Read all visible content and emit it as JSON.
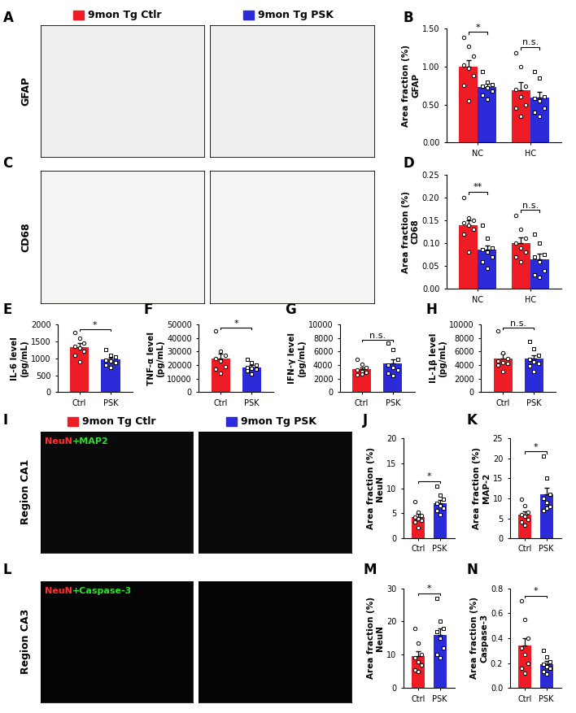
{
  "groups": [
    {
      "name": "9mon Tg Ctlr",
      "color": "#ee1c25"
    },
    {
      "name": "9mon Tg PSK",
      "color": "#2b2bd9"
    }
  ],
  "images": [
    {
      "panel": "A",
      "row_label": "GFAP",
      "headers": true,
      "background": "#f0efed"
    },
    {
      "panel": "C",
      "row_label": "CD68",
      "headers": false,
      "background": "#f4f4f2"
    },
    {
      "panel": "I",
      "row_label": "Region CA1",
      "headers": true,
      "background": "#0a0a0a",
      "stain": [
        {
          "text": "NeuN",
          "color": "#ff3030"
        },
        {
          "text": "+MAP2",
          "color": "#30e030"
        }
      ]
    },
    {
      "panel": "L",
      "row_label": "Region CA3",
      "headers": false,
      "background": "#050505",
      "stain": [
        {
          "text": "NeuN",
          "color": "#ff3030"
        },
        {
          "text": "+Caspase-3",
          "color": "#30e030"
        }
      ]
    }
  ],
  "chart_data": [
    {
      "panel": "B",
      "type": "bar",
      "ylabel": "Area fraction (%)\nGFAP",
      "categories": [
        "NC",
        "HC"
      ],
      "series": [
        {
          "color": "#ee1c25",
          "values": [
            1.0,
            0.69
          ],
          "errors": [
            0.08,
            0.1
          ],
          "points": [
            [
              1.38,
              1.27,
              1.14,
              1.02,
              0.98,
              0.88,
              0.75,
              0.55
            ],
            [
              1.18,
              1.0,
              0.74,
              0.7,
              0.6,
              0.5,
              0.45,
              0.35
            ]
          ]
        },
        {
          "color": "#2b2bd9",
          "values": [
            0.73,
            0.59
          ],
          "errors": [
            0.04,
            0.08
          ],
          "points": [
            [
              0.93,
              0.79,
              0.76,
              0.74,
              0.72,
              0.68,
              0.62,
              0.57
            ],
            [
              0.93,
              0.85,
              0.6,
              0.58,
              0.55,
              0.45,
              0.4,
              0.35
            ]
          ]
        }
      ],
      "significance": [
        "*",
        "n.s."
      ],
      "ylim": [
        0,
        1.5
      ],
      "yticks": [
        {
          "value": 0,
          "label": "0.00"
        },
        {
          "value": 0.5,
          "label": "0.50"
        },
        {
          "value": 1.0,
          "label": "1.00"
        },
        {
          "value": 1.5,
          "label": "1.50"
        }
      ]
    },
    {
      "panel": "D",
      "type": "bar",
      "ylabel": "Area fraction (%)\nCD68",
      "categories": [
        "NC",
        "HC"
      ],
      "series": [
        {
          "color": "#ee1c25",
          "values": [
            0.14,
            0.1
          ],
          "errors": [
            0.01,
            0.012
          ],
          "points": [
            [
              0.2,
              0.155,
              0.15,
              0.145,
              0.14,
              0.13,
              0.12,
              0.08
            ],
            [
              0.16,
              0.13,
              0.11,
              0.1,
              0.09,
              0.08,
              0.07,
              0.06
            ]
          ]
        },
        {
          "color": "#2b2bd9",
          "values": [
            0.085,
            0.065
          ],
          "errors": [
            0.01,
            0.012
          ],
          "points": [
            [
              0.14,
              0.11,
              0.09,
              0.085,
              0.08,
              0.07,
              0.06,
              0.045
            ],
            [
              0.12,
              0.1,
              0.075,
              0.07,
              0.06,
              0.04,
              0.03,
              0.025
            ]
          ]
        }
      ],
      "significance": [
        "**",
        "n.s."
      ],
      "ylim": [
        0,
        0.25
      ],
      "yticks": [
        {
          "value": 0,
          "label": "0.00"
        },
        {
          "value": 0.05,
          "label": "0.05"
        },
        {
          "value": 0.1,
          "label": "0.10"
        },
        {
          "value": 0.15,
          "label": "0.15"
        },
        {
          "value": 0.2,
          "label": "0.20"
        },
        {
          "value": 0.25,
          "label": "0.25"
        }
      ]
    },
    {
      "panel": "E",
      "type": "bar",
      "ylabel": "IL-6 level\n(pg/mL)",
      "categories": [
        "Ctrl",
        "PSK"
      ],
      "values": [
        1330,
        960
      ],
      "colors": [
        "#ee1c25",
        "#2b2bd9"
      ],
      "errors": [
        110,
        60
      ],
      "points": [
        [
          1750,
          1600,
          1450,
          1350,
          1300,
          1200,
          1100,
          900
        ],
        [
          1250,
          1100,
          1050,
          950,
          920,
          880,
          800,
          730
        ]
      ],
      "significance": "*",
      "ylim": [
        0,
        2000
      ],
      "yticks": [
        0,
        500,
        1000,
        1500,
        2000
      ]
    },
    {
      "panel": "F",
      "type": "bar",
      "ylabel": "TNF-α level\n(pg/mL)",
      "categories": [
        "Ctrl",
        "PSK"
      ],
      "values": [
        25000,
        18500
      ],
      "colors": [
        "#ee1c25",
        "#2b2bd9"
      ],
      "errors": [
        3200,
        1300
      ],
      "points": [
        [
          45000,
          30000,
          27000,
          25000,
          23000,
          19000,
          17000,
          14000
        ],
        [
          24000,
          22000,
          20000,
          18000,
          17500,
          17000,
          16000,
          13500
        ]
      ],
      "significance": "*",
      "ylim": [
        0,
        50000
      ],
      "yticks": [
        0,
        10000,
        20000,
        30000,
        40000,
        50000
      ]
    },
    {
      "panel": "G",
      "type": "bar",
      "ylabel": "IFN-γ level\n(pg/mL)",
      "categories": [
        "Ctrl",
        "PSK"
      ],
      "values": [
        3400,
        4300
      ],
      "colors": [
        "#ee1c25",
        "#2b2bd9"
      ],
      "errors": [
        300,
        600
      ],
      "points": [
        [
          4800,
          4100,
          3700,
          3300,
          3100,
          2900,
          2600,
          2700
        ],
        [
          7200,
          6300,
          4800,
          4000,
          3600,
          3300,
          2800,
          2400
        ]
      ],
      "significance": "n.s.",
      "ylim": [
        0,
        10000
      ],
      "yticks": [
        0,
        2000,
        4000,
        6000,
        8000,
        10000
      ]
    },
    {
      "panel": "H",
      "type": "bar",
      "ylabel": "IL-1β level\n(pg/mL)",
      "categories": [
        "Ctrl",
        "PSK"
      ],
      "values": [
        5000,
        5000
      ],
      "colors": [
        "#ee1c25",
        "#2b2bd9"
      ],
      "errors": [
        650,
        480
      ],
      "points": [
        [
          9000,
          5800,
          5000,
          4600,
          4400,
          4200,
          4000,
          3000
        ],
        [
          7500,
          6400,
          5500,
          4900,
          4500,
          4300,
          3900,
          3000
        ]
      ],
      "significance": "n.s.",
      "ylim": [
        0,
        10000
      ],
      "yticks": [
        0,
        2000,
        4000,
        6000,
        8000,
        10000
      ]
    },
    {
      "panel": "J",
      "type": "bar",
      "ylabel": "Area fraction (%)\nNeuN",
      "categories": [
        "Ctrl",
        "PSK"
      ],
      "values": [
        4.3,
        7.1
      ],
      "colors": [
        "#ee1c25",
        "#2b2bd9"
      ],
      "errors": [
        0.55,
        0.65
      ],
      "points": [
        [
          7.4,
          5.2,
          4.6,
          4.3,
          4.0,
          3.6,
          3.2,
          2.1
        ],
        [
          10.5,
          8.6,
          7.8,
          7.0,
          6.6,
          6.0,
          5.6,
          4.7
        ]
      ],
      "significance": "*",
      "ylim": [
        0,
        20
      ],
      "yticks": [
        0,
        5,
        10,
        15,
        20
      ]
    },
    {
      "panel": "K",
      "type": "bar",
      "ylabel": "Area fraction (%)\nMAP-2",
      "categories": [
        "Ctrl",
        "PSK"
      ],
      "values": [
        6.0,
        11.0
      ],
      "colors": [
        "#ee1c25",
        "#2b2bd9"
      ],
      "errors": [
        0.8,
        1.6
      ],
      "points": [
        [
          9.7,
          8.2,
          6.5,
          6.0,
          5.5,
          4.8,
          4.0,
          3.3
        ],
        [
          20.5,
          15,
          11,
          10,
          9,
          8,
          7,
          7.5
        ]
      ],
      "significance": "*",
      "ylim": [
        0,
        25
      ],
      "yticks": [
        0,
        5,
        10,
        15,
        20,
        25
      ]
    },
    {
      "panel": "M",
      "type": "bar",
      "ylabel": "Area fraction (%)\nNeuN",
      "categories": [
        "Ctrl",
        "PSK"
      ],
      "values": [
        9.5,
        16
      ],
      "colors": [
        "#ee1c25",
        "#2b2bd9"
      ],
      "errors": [
        1.5,
        2
      ],
      "points": [
        [
          18,
          13.5,
          10,
          9,
          8,
          7,
          5.5,
          5
        ],
        [
          27,
          20,
          18,
          17,
          15,
          12,
          10,
          9
        ]
      ],
      "significance": "*",
      "ylim": [
        0,
        30
      ],
      "yticks": [
        0,
        10,
        20,
        30
      ]
    },
    {
      "panel": "N",
      "type": "bar",
      "ylabel": "Area fraction (%)\nCaspase-3",
      "categories": [
        "Ctrl",
        "PSK"
      ],
      "values": [
        0.34,
        0.19
      ],
      "colors": [
        "#ee1c25",
        "#2b2bd9"
      ],
      "errors": [
        0.06,
        0.025
      ],
      "points": [
        [
          0.7,
          0.55,
          0.4,
          0.32,
          0.27,
          0.2,
          0.16,
          0.12
        ],
        [
          0.3,
          0.25,
          0.21,
          0.19,
          0.17,
          0.16,
          0.13,
          0.11
        ]
      ],
      "significance": "*",
      "ylim": [
        0,
        0.8
      ],
      "yticks": [
        {
          "value": 0,
          "label": "0.0"
        },
        {
          "value": 0.2,
          "label": "0.2"
        },
        {
          "value": 0.4,
          "label": "0.4"
        },
        {
          "value": 0.6,
          "label": "0.6"
        },
        {
          "value": 0.8,
          "label": "0.8"
        }
      ]
    }
  ]
}
